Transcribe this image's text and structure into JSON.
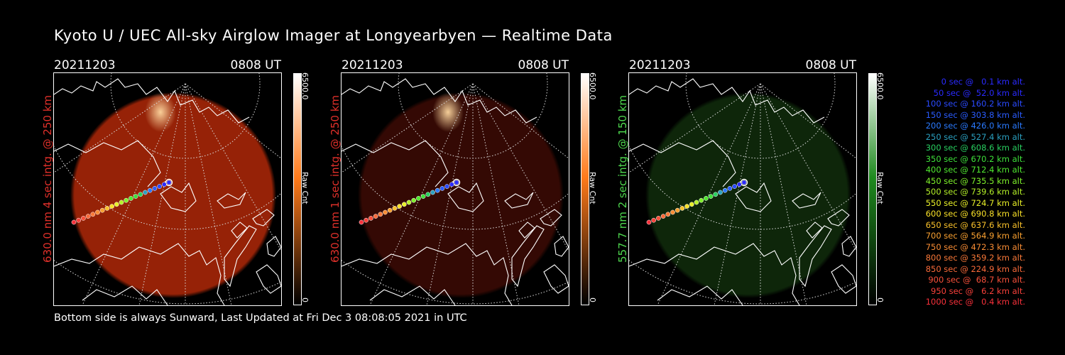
{
  "title": "Kyoto U / UEC All-sky Airglow Imager at Longyearbyen — Realtime Data",
  "footer": "Bottom side is always Sunward, Last Updated at Fri Dec  3 08:08:05 2021 in UTC",
  "panels": [
    {
      "date": "20211203",
      "time": "0808 UT",
      "side_label": "630.0 nm 4 sec intg. @ 250 km",
      "label_color": "#e0302a",
      "glow": "#b02808",
      "glow_opacity": 0.85,
      "bright_spot": true,
      "cbar_max": "6500.0",
      "cbar_min": "0",
      "cbar_unit": "Raw Cnt",
      "cbar_color": "#ff7a1a"
    },
    {
      "date": "20211203",
      "time": "0808 UT",
      "side_label": "630.0 nm 1 sec intg. @ 250 km",
      "label_color": "#e0302a",
      "glow": "#3a0a04",
      "glow_opacity": 0.9,
      "bright_spot": true,
      "cbar_max": "6500.0",
      "cbar_min": "0",
      "cbar_unit": "Raw Cnt",
      "cbar_color": "#ff7a1a"
    },
    {
      "date": "20211203",
      "time": "0808 UT",
      "side_label": "557.7 nm 2 sec intg. @ 150 km",
      "label_color": "#4ed84e",
      "glow": "#0f2a0b",
      "glow_opacity": 0.9,
      "bright_spot": false,
      "cbar_max": "6500.0",
      "cbar_min": "0",
      "cbar_unit": "Raw Cnt",
      "cbar_color": "#1e8a1e"
    }
  ],
  "legend": [
    {
      "text": "0 sec @   0.1 km alt.",
      "color": "#2a2aff"
    },
    {
      "text": "50 sec @  52.0 km alt.",
      "color": "#2a2aff"
    },
    {
      "text": "100 sec @ 160.2 km alt.",
      "color": "#2a4aff"
    },
    {
      "text": "150 sec @ 303.8 km alt.",
      "color": "#2a5cff"
    },
    {
      "text": "200 sec @ 426.0 km alt.",
      "color": "#2a7aff"
    },
    {
      "text": "250 sec @ 527.4 km alt.",
      "color": "#2aa0c0"
    },
    {
      "text": "300 sec @ 608.6 km alt.",
      "color": "#28d060"
    },
    {
      "text": "350 sec @ 670.2 km alt.",
      "color": "#3ee03a"
    },
    {
      "text": "400 sec @ 712.4 km alt.",
      "color": "#50e830"
    },
    {
      "text": "450 sec @ 735.5 km alt.",
      "color": "#7ef02a"
    },
    {
      "text": "500 sec @ 739.6 km alt.",
      "color": "#b4f028"
    },
    {
      "text": "550 sec @ 724.7 km alt.",
      "color": "#e8f028"
    },
    {
      "text": "600 sec @ 690.8 km alt.",
      "color": "#f8e028"
    },
    {
      "text": "650 sec @ 637.6 km alt.",
      "color": "#f8c02a"
    },
    {
      "text": "700 sec @ 564.9 km alt.",
      "color": "#f8a030"
    },
    {
      "text": "750 sec @ 472.3 km alt.",
      "color": "#f88c34"
    },
    {
      "text": "800 sec @ 359.2 km alt.",
      "color": "#f87838"
    },
    {
      "text": "850 sec @ 224.9 km alt.",
      "color": "#f86a3a"
    },
    {
      "text": "900 sec @  68.7 km alt.",
      "color": "#f8503a"
    },
    {
      "text": "950 sec @   6.2 km alt.",
      "color": "#f8403a"
    },
    {
      "text": "1000 sec @   0.4 km alt.",
      "color": "#f8303a"
    }
  ]
}
